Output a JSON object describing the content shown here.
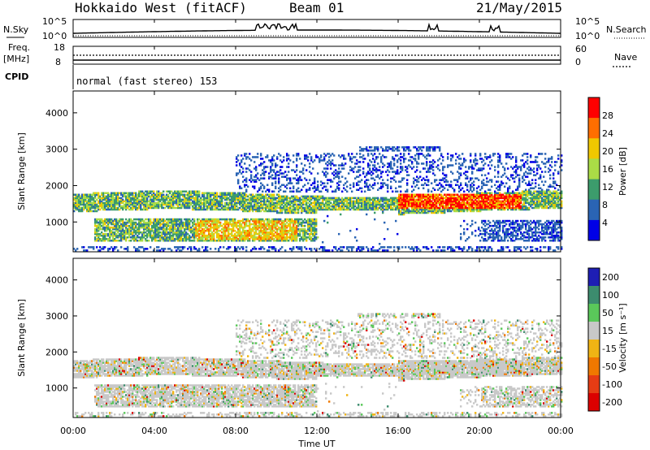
{
  "header": {
    "title": "Hokkaido West (fitACF)",
    "beam": "Beam 01",
    "date": "21/May/2015",
    "nsky_label": "N.Sky",
    "nsearch_label": "N.Search",
    "freq_label_1": "Freq.",
    "freq_label_2": "[MHz]",
    "nave_label": "Nave",
    "cpid_label": "CPID",
    "cpid_text": "normal (fast stereo) 153",
    "noise_ticks_left": [
      "10^5",
      "10^0"
    ],
    "noise_ticks_right": [
      "10^5",
      "10^0"
    ],
    "freq_ticks": [
      "18",
      "8"
    ],
    "nave_ticks": [
      "60",
      "0"
    ]
  },
  "chart_data": [
    {
      "type": "heatmap",
      "name": "power",
      "ylabel": "Slant Range [km]",
      "ylim": [
        180,
        4600
      ],
      "yticks": [
        1000,
        2000,
        3000,
        4000
      ],
      "xlim": [
        0,
        24
      ],
      "colorbar": {
        "label": "Power [dB]",
        "ticks": [
          "28",
          "24",
          "20",
          "16",
          "12",
          "8",
          "4"
        ],
        "colors": [
          "#ff0000",
          "#ff6e00",
          "#f0c800",
          "#aadc46",
          "#3c9c6c",
          "#2a64b4",
          "#0000e6"
        ]
      },
      "bands": [
        {
          "hours": [
            0,
            24
          ],
          "range_km": [
            1350,
            1750
          ],
          "level": "12-20 dB"
        },
        {
          "hours": [
            6,
            12
          ],
          "range_km": [
            500,
            1100
          ],
          "level": "16-24 dB"
        },
        {
          "hours": [
            16,
            22
          ],
          "range_km": [
            1400,
            1750
          ],
          "level": "20-28 dB"
        }
      ]
    },
    {
      "type": "heatmap",
      "name": "velocity",
      "ylabel": "Slant Range [km]",
      "xlabel": "Time UT",
      "ylim": [
        180,
        4600
      ],
      "yticks": [
        1000,
        2000,
        3000,
        4000
      ],
      "xlim": [
        0,
        24
      ],
      "xticks": [
        "00:00",
        "04:00",
        "08:00",
        "12:00",
        "16:00",
        "20:00",
        "00:00"
      ],
      "colorbar": {
        "label": "Velocity [m s⁻¹]",
        "ticks": [
          "200",
          "100",
          "50",
          "15",
          "-15",
          "-50",
          "-100",
          "-200"
        ],
        "colors": [
          "#1e1eb4",
          "#3c8c6e",
          "#5ac85a",
          "#c8c8c8",
          "#f0b414",
          "#f07800",
          "#e63c14",
          "#dc0000"
        ]
      },
      "bands": [
        {
          "hours": [
            0,
            24
          ],
          "range_km": [
            1300,
            1750
          ],
          "level": "-15 to 15 m/s"
        },
        {
          "hours": [
            0,
            12
          ],
          "range_km": [
            500,
            1000
          ],
          "level": "-15 to 15 m/s"
        }
      ]
    }
  ],
  "colors": {
    "frame": "#000000",
    "background": "#ffffff"
  }
}
